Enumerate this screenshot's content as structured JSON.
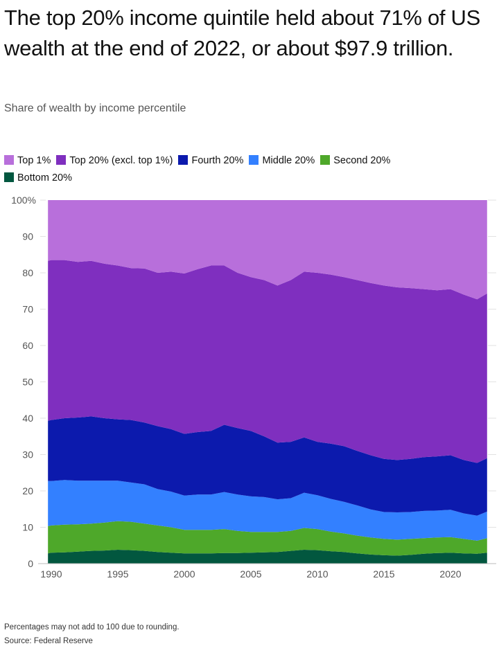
{
  "title": "The top 20% income quintile held about 71% of US wealth at the end of 2022, or about $97.9 trillion.",
  "subtitle": "Share of wealth by income percentile",
  "footnote": "Percentages may not add to 100 due to rounding.",
  "source": "Source: Federal Reserve",
  "chart_data": {
    "type": "area",
    "stacked": true,
    "ylim": [
      0,
      100
    ],
    "yticks": [
      "0",
      "10",
      "20",
      "30",
      "40",
      "50",
      "60",
      "70",
      "80",
      "90",
      "100%"
    ],
    "xticks": [
      "1990",
      "1995",
      "2000",
      "2005",
      "2010",
      "2015",
      "2020"
    ],
    "xlim": [
      1989.75,
      2022.75
    ],
    "grid": true,
    "legend_position": "top",
    "x": [
      1989.75,
      1990,
      1991,
      1992,
      1993,
      1994,
      1995,
      1996,
      1997,
      1998,
      1999,
      2000,
      2001,
      2002,
      2003,
      2004,
      2005,
      2006,
      2007,
      2008,
      2009,
      2010,
      2011,
      2012,
      2013,
      2014,
      2015,
      2016,
      2017,
      2018,
      2019,
      2020,
      2021,
      2022,
      2022.75
    ],
    "series": [
      {
        "name": "Bottom 20%",
        "color": "#02573f",
        "values": [
          2.8,
          3.0,
          3.1,
          3.3,
          3.5,
          3.6,
          3.8,
          3.7,
          3.5,
          3.2,
          3.0,
          2.8,
          2.8,
          2.8,
          2.9,
          2.9,
          3.0,
          3.1,
          3.2,
          3.5,
          3.8,
          3.7,
          3.4,
          3.2,
          2.8,
          2.5,
          2.3,
          2.2,
          2.4,
          2.7,
          2.9,
          3.0,
          2.8,
          2.7,
          3.0
        ]
      },
      {
        "name": "Second 20%",
        "color": "#4ea82a",
        "values": [
          7.5,
          7.5,
          7.6,
          7.5,
          7.5,
          7.7,
          7.9,
          7.8,
          7.5,
          7.3,
          7.0,
          6.5,
          6.5,
          6.5,
          6.6,
          6.1,
          5.7,
          5.6,
          5.5,
          5.5,
          6.0,
          5.8,
          5.4,
          5.1,
          4.9,
          4.7,
          4.5,
          4.4,
          4.4,
          4.3,
          4.3,
          4.3,
          4.0,
          3.6,
          4.0
        ]
      },
      {
        "name": "Middle 20%",
        "color": "#3380ff",
        "values": [
          12.4,
          12.2,
          12.3,
          12.0,
          11.8,
          11.5,
          11.1,
          10.8,
          10.8,
          10.0,
          9.8,
          9.4,
          9.7,
          9.7,
          10.2,
          10.0,
          9.8,
          9.6,
          9.0,
          9.0,
          9.7,
          9.3,
          9.0,
          8.7,
          8.3,
          7.7,
          7.4,
          7.5,
          7.4,
          7.5,
          7.4,
          7.5,
          7.0,
          6.9,
          7.3
        ]
      },
      {
        "name": "Fourth 20%",
        "color": "#0c1aad",
        "values": [
          16.6,
          16.8,
          17.0,
          17.4,
          17.7,
          17.2,
          16.9,
          17.2,
          17.0,
          17.3,
          17.2,
          17.0,
          17.2,
          17.5,
          18.5,
          18.3,
          18.0,
          16.7,
          15.6,
          15.5,
          15.2,
          14.7,
          15.2,
          15.3,
          15.0,
          14.9,
          14.6,
          14.4,
          14.6,
          14.8,
          14.9,
          15.0,
          14.7,
          14.5,
          14.7
        ]
      },
      {
        "name": "Top 20% (excl. top 1%)",
        "color": "#7f2fbf",
        "values": [
          44.0,
          44.0,
          43.5,
          42.8,
          42.8,
          42.5,
          42.3,
          41.8,
          42.4,
          42.2,
          43.3,
          44.1,
          44.8,
          45.5,
          43.8,
          42.7,
          42.3,
          43.0,
          43.2,
          44.5,
          45.6,
          46.5,
          46.5,
          46.5,
          47.0,
          47.4,
          47.7,
          47.5,
          47.0,
          46.2,
          45.7,
          45.7,
          45.5,
          45.0,
          45.3
        ]
      },
      {
        "name": "Top 1%",
        "color": "#b86fdb",
        "values": [
          16.7,
          16.5,
          16.5,
          17.0,
          16.7,
          17.5,
          18.0,
          18.7,
          18.8,
          20.0,
          19.7,
          20.2,
          19.0,
          18.0,
          18.0,
          20.0,
          21.2,
          22.0,
          23.5,
          22.0,
          19.7,
          20.0,
          20.5,
          21.2,
          22.0,
          22.8,
          23.5,
          24.0,
          24.2,
          24.5,
          24.8,
          24.5,
          26.0,
          27.3,
          25.7
        ]
      }
    ],
    "legend_order": [
      "Top 1%",
      "Top 20% (excl. top 1%)",
      "Fourth 20%",
      "Middle 20%",
      "Second 20%",
      "Bottom 20%"
    ]
  }
}
